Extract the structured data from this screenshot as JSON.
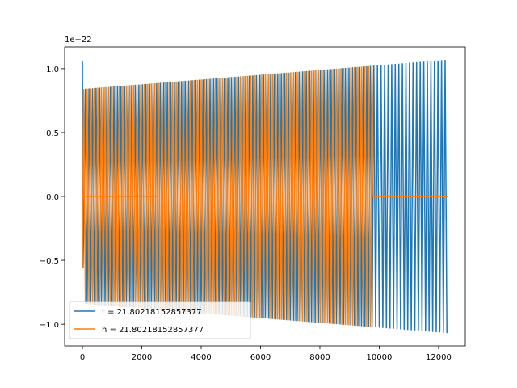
{
  "chart_data": {
    "type": "line",
    "title": "",
    "xlabel": "",
    "ylabel": "",
    "offset_text": "1e−22",
    "xlim": [
      -600,
      12900
    ],
    "ylim": [
      -1.17,
      1.17
    ],
    "xticks": [
      0,
      2000,
      4000,
      6000,
      8000,
      10000,
      12000
    ],
    "xtick_labels": [
      "0",
      "2000",
      "4000",
      "6000",
      "8000",
      "10000",
      "12000"
    ],
    "yticks": [
      -1.0,
      -0.5,
      0.0,
      0.5,
      1.0
    ],
    "ytick_labels": [
      "−1.0",
      "−0.5",
      "0.0",
      "0.5",
      "1.0"
    ],
    "grid": false,
    "legend_position": "lower-left",
    "series": [
      {
        "name": "t = 21.80218152857377",
        "color": "#1f77b4",
        "description_points": [
          [
            0,
            1.06
          ],
          [
            80,
            -0.56
          ],
          [
            200,
            0.84
          ],
          [
            9800,
            0.98
          ],
          [
            12300,
            1.07
          ]
        ],
        "x_range": [
          0,
          12300
        ],
        "envelope_start": 0.84,
        "envelope_end": 1.07
      },
      {
        "name": "h = 21.80218152857377",
        "color": "#ff7f0e",
        "x_range": [
          0,
          12300
        ],
        "zero_segments": [
          [
            0,
            80
          ],
          [
            100,
            2550
          ],
          [
            9800,
            12300
          ]
        ],
        "envelope_start": 0.84,
        "envelope_end": 1.07,
        "osc_end": 9800
      }
    ]
  }
}
